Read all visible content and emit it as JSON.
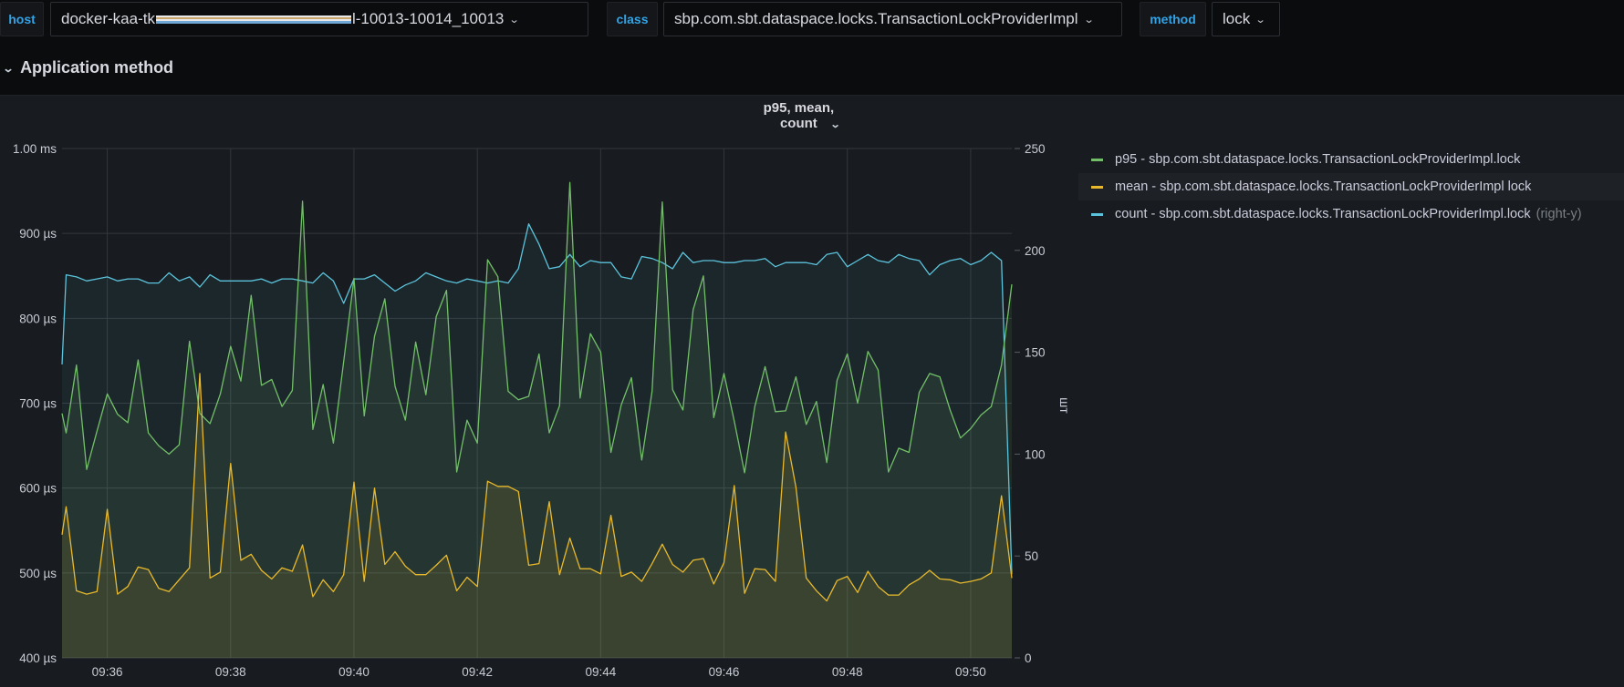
{
  "variables": [
    {
      "label": "host",
      "value_prefix": "docker-kaa-tk",
      "value_suffix": "l-10013-10014_10013"
    },
    {
      "label": "class",
      "value": "sbp.com.sbt.dataspace.locks.TransactionLockProviderImpl"
    },
    {
      "label": "method",
      "value": "lock"
    }
  ],
  "row": {
    "title": "Application method"
  },
  "panel": {
    "title": "p95, mean, count"
  },
  "legend": [
    {
      "label": "p95 - sbp.com.sbt.dataspace.locks.TransactionLockProviderImpl.lock",
      "color": "#73bf69",
      "note": ""
    },
    {
      "label": "mean - sbp.com.sbt.dataspace.locks.TransactionLockProviderImpl lock",
      "color": "#e8b92c",
      "note": ""
    },
    {
      "label": "count - sbp.com.sbt.dataspace.locks.TransactionLockProviderImpl.lock",
      "color": "#5bc4dc",
      "note": "(right-y)"
    }
  ],
  "chart_data": {
    "type": "line",
    "title": "p95, mean, count",
    "xlabel": "",
    "ylabel": "",
    "y2label": "шт",
    "xlim": [
      "09:35:16",
      "09:50:40"
    ],
    "ylim": [
      400,
      1000
    ],
    "y2lim": [
      0,
      250
    ],
    "grid": true,
    "legend_position": "right",
    "x_ticks": [
      "09:36",
      "09:38",
      "09:40",
      "09:42",
      "09:44",
      "09:46",
      "09:48",
      "09:50"
    ],
    "y_ticks": [
      {
        "value": 1000,
        "label": "1.00 ms"
      },
      {
        "value": 900,
        "label": "900 µs"
      },
      {
        "value": 800,
        "label": "800 µs"
      },
      {
        "value": 700,
        "label": "700 µs"
      },
      {
        "value": 600,
        "label": "600 µs"
      },
      {
        "value": 500,
        "label": "500 µs"
      },
      {
        "value": 400,
        "label": "400 µs"
      }
    ],
    "y2_ticks": [
      {
        "value": 250,
        "label": "250"
      },
      {
        "value": 200,
        "label": "200"
      },
      {
        "value": 150,
        "label": "150"
      },
      {
        "value": 100,
        "label": "100"
      },
      {
        "value": 50,
        "label": "50"
      },
      {
        "value": 0,
        "label": "0"
      }
    ],
    "x": [
      "09:35:16",
      "09:35:20",
      "09:35:30",
      "09:35:40",
      "09:35:50",
      "09:36:00",
      "09:36:10",
      "09:36:20",
      "09:36:30",
      "09:36:40",
      "09:36:50",
      "09:37:00",
      "09:37:10",
      "09:37:20",
      "09:37:30",
      "09:37:40",
      "09:37:50",
      "09:38:00",
      "09:38:10",
      "09:38:20",
      "09:38:30",
      "09:38:40",
      "09:38:50",
      "09:39:00",
      "09:39:10",
      "09:39:20",
      "09:39:30",
      "09:39:40",
      "09:39:50",
      "09:40:00",
      "09:40:10",
      "09:40:20",
      "09:40:30",
      "09:40:40",
      "09:40:50",
      "09:41:00",
      "09:41:10",
      "09:41:20",
      "09:41:30",
      "09:41:40",
      "09:41:50",
      "09:42:00",
      "09:42:10",
      "09:42:20",
      "09:42:30",
      "09:42:40",
      "09:42:50",
      "09:43:00",
      "09:43:10",
      "09:43:20",
      "09:43:30",
      "09:43:40",
      "09:43:50",
      "09:44:00",
      "09:44:10",
      "09:44:20",
      "09:44:30",
      "09:44:40",
      "09:44:50",
      "09:45:00",
      "09:45:10",
      "09:45:20",
      "09:45:30",
      "09:45:40",
      "09:45:50",
      "09:46:00",
      "09:46:10",
      "09:46:20",
      "09:46:30",
      "09:46:40",
      "09:46:50",
      "09:47:00",
      "09:47:10",
      "09:47:20",
      "09:47:30",
      "09:47:40",
      "09:47:50",
      "09:48:00",
      "09:48:10",
      "09:48:20",
      "09:48:30",
      "09:48:40",
      "09:48:50",
      "09:49:00",
      "09:49:10",
      "09:49:20",
      "09:49:30",
      "09:49:40",
      "09:49:50",
      "09:50:00",
      "09:50:10",
      "09:50:20",
      "09:50:30",
      "09:50:40"
    ],
    "series": [
      {
        "name": "p95",
        "axis": "left",
        "unit": "µs",
        "color": "#73bf69",
        "values": [
          688,
          665,
          745,
          622,
          667,
          711,
          687,
          677,
          751,
          665,
          650,
          640,
          651,
          773,
          688,
          676,
          711,
          767,
          726,
          827,
          721,
          728,
          696,
          715,
          938,
          669,
          722,
          653,
          749,
          847,
          685,
          779,
          823,
          720,
          680,
          772,
          710,
          802,
          833,
          619,
          680,
          653,
          869,
          849,
          714,
          704,
          708,
          758,
          665,
          697,
          960,
          706,
          782,
          760,
          642,
          698,
          730,
          633,
          714,
          937,
          716,
          692,
          810,
          850,
          683,
          735,
          679,
          618,
          696,
          743,
          690,
          691,
          731,
          675,
          702,
          630,
          727,
          758,
          700,
          761,
          739,
          619,
          647,
          642,
          713,
          735,
          731,
          692,
          659,
          670,
          686,
          696,
          745,
          840
        ]
      },
      {
        "name": "mean",
        "axis": "left",
        "unit": "µs",
        "color": "#e8b92c",
        "values": [
          545,
          578,
          479,
          475,
          478,
          575,
          475,
          484,
          507,
          504,
          482,
          478,
          492,
          506,
          735,
          494,
          501,
          629,
          515,
          522,
          503,
          493,
          506,
          502,
          533,
          472,
          492,
          478,
          498,
          607,
          490,
          600,
          510,
          525,
          508,
          498,
          498,
          509,
          521,
          479,
          495,
          484,
          608,
          602,
          602,
          596,
          509,
          511,
          584,
          498,
          541,
          505,
          505,
          499,
          568,
          496,
          501,
          490,
          511,
          534,
          510,
          501,
          515,
          517,
          487,
          512,
          603,
          476,
          505,
          504,
          490,
          666,
          601,
          494,
          479,
          467,
          491,
          496,
          477,
          502,
          484,
          474,
          474,
          486,
          493,
          503,
          493,
          492,
          488,
          490,
          493,
          500,
          591,
          494
        ]
      },
      {
        "name": "count",
        "axis": "right",
        "unit": "шт",
        "color": "#5bc4dc",
        "values": [
          144,
          188,
          187,
          185,
          186,
          187,
          185,
          186,
          186,
          184,
          184,
          189,
          185,
          187,
          182,
          188,
          185,
          185,
          185,
          185,
          186,
          184,
          186,
          186,
          185,
          184,
          189,
          185,
          174,
          186,
          186,
          188,
          184,
          180,
          183,
          185,
          189,
          187,
          185,
          184,
          186,
          185,
          184,
          185,
          184,
          191,
          213,
          203,
          191,
          192,
          198,
          192,
          195,
          194,
          194,
          187,
          186,
          197,
          196,
          194,
          191,
          199,
          194,
          195,
          195,
          194,
          194,
          195,
          195,
          196,
          192,
          194,
          194,
          194,
          193,
          198,
          199,
          192,
          195,
          198,
          195,
          194,
          198,
          196,
          195,
          188,
          193,
          195,
          196,
          193,
          195,
          199,
          195,
          41
        ]
      }
    ]
  }
}
